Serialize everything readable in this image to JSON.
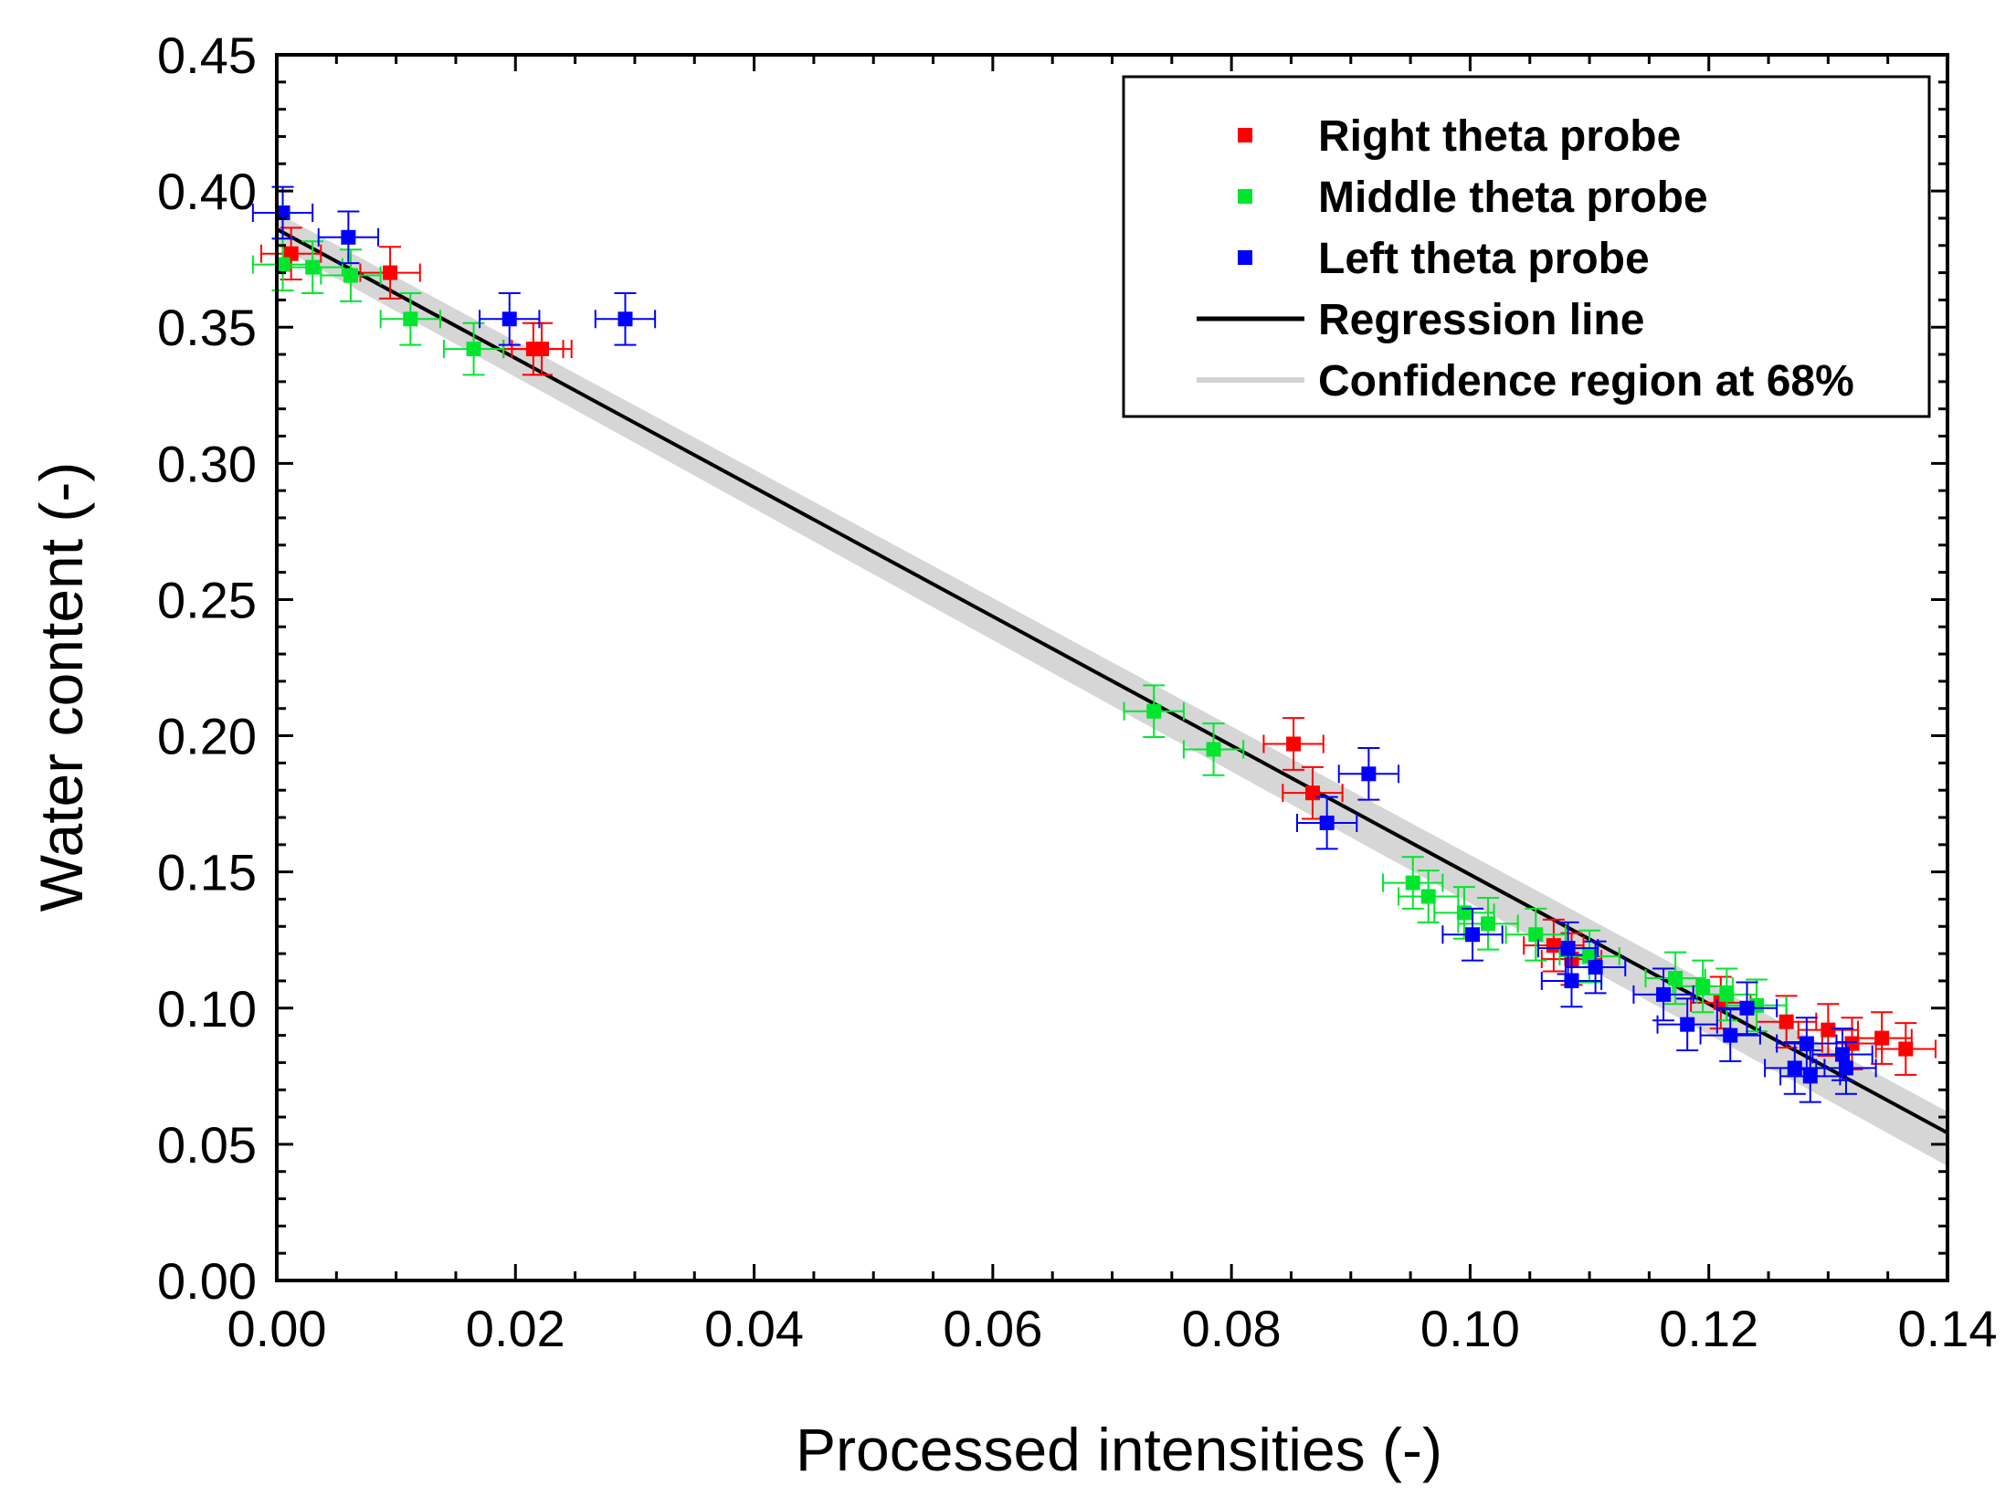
{
  "chart_data": {
    "type": "scatter",
    "title": "",
    "xlabel": "Processed intensities (-)",
    "ylabel": "Water content (-)",
    "xlim": [
      0.0,
      0.14
    ],
    "ylim": [
      0.0,
      0.45
    ],
    "xticks": [
      0.0,
      0.02,
      0.04,
      0.06,
      0.08,
      0.1,
      0.12,
      0.14
    ],
    "xtick_labels": [
      "0.00",
      "0.02",
      "0.04",
      "0.06",
      "0.08",
      "0.10",
      "0.12",
      "0.14"
    ],
    "yticks": [
      0.0,
      0.05,
      0.1,
      0.15,
      0.2,
      0.25,
      0.3,
      0.35,
      0.4,
      0.45
    ],
    "ytick_labels": [
      "0.00",
      "0.05",
      "0.10",
      "0.15",
      "0.20",
      "0.25",
      "0.30",
      "0.35",
      "0.40",
      "0.45"
    ],
    "grid": false,
    "legend_position": "top-right",
    "legend": [
      {
        "label": "Right theta probe",
        "kind": "marker",
        "color": "#ff0000"
      },
      {
        "label": "Middle theta probe",
        "kind": "marker",
        "color": "#00e62e"
      },
      {
        "label": "Left theta probe",
        "kind": "marker",
        "color": "#0000ff"
      },
      {
        "label": "Regression line",
        "kind": "line",
        "color": "#000000"
      },
      {
        "label": "Confidence region at 68%",
        "kind": "band",
        "color": "#d3d3d3"
      }
    ],
    "regression": {
      "intercept": 0.386,
      "slope": -2.37,
      "x_range": [
        0.0,
        0.14
      ]
    },
    "confidence_band": {
      "x": [
        0.0,
        0.14
      ],
      "upper": [
        0.392,
        0.062
      ],
      "lower": [
        0.38,
        0.042
      ]
    },
    "series": [
      {
        "name": "Right theta probe",
        "color": "#ff0000",
        "xerr": 0.0025,
        "yerr": 0.0095,
        "points": [
          [
            0.0012,
            0.377
          ],
          [
            0.0095,
            0.37
          ],
          [
            0.0215,
            0.342
          ],
          [
            0.0222,
            0.342
          ],
          [
            0.0852,
            0.197
          ],
          [
            0.0868,
            0.179
          ],
          [
            0.107,
            0.123
          ],
          [
            0.1085,
            0.118
          ],
          [
            0.121,
            0.102
          ],
          [
            0.1265,
            0.095
          ],
          [
            0.13,
            0.092
          ],
          [
            0.132,
            0.087
          ],
          [
            0.1345,
            0.089
          ],
          [
            0.1365,
            0.085
          ]
        ]
      },
      {
        "name": "Middle theta probe",
        "color": "#00e62e",
        "xerr": 0.0025,
        "yerr": 0.0095,
        "points": [
          [
            0.0005,
            0.373
          ],
          [
            0.003,
            0.372
          ],
          [
            0.0062,
            0.369
          ],
          [
            0.0112,
            0.353
          ],
          [
            0.0165,
            0.342
          ],
          [
            0.0735,
            0.209
          ],
          [
            0.0785,
            0.195
          ],
          [
            0.0952,
            0.146
          ],
          [
            0.0965,
            0.141
          ],
          [
            0.0995,
            0.135
          ],
          [
            0.1015,
            0.131
          ],
          [
            0.1055,
            0.127
          ],
          [
            0.11,
            0.119
          ],
          [
            0.1172,
            0.111
          ],
          [
            0.1195,
            0.108
          ],
          [
            0.1215,
            0.105
          ],
          [
            0.124,
            0.101
          ]
        ]
      },
      {
        "name": "Left theta probe",
        "color": "#0000ff",
        "xerr": 0.0025,
        "yerr": 0.0095,
        "points": [
          [
            0.0005,
            0.392
          ],
          [
            0.006,
            0.383
          ],
          [
            0.0195,
            0.353
          ],
          [
            0.0292,
            0.353
          ],
          [
            0.088,
            0.168
          ],
          [
            0.0915,
            0.186
          ],
          [
            0.1002,
            0.127
          ],
          [
            0.1082,
            0.122
          ],
          [
            0.1085,
            0.11
          ],
          [
            0.1105,
            0.115
          ],
          [
            0.1162,
            0.105
          ],
          [
            0.1182,
            0.094
          ],
          [
            0.1218,
            0.09
          ],
          [
            0.1232,
            0.1
          ],
          [
            0.1282,
            0.087
          ],
          [
            0.1272,
            0.078
          ],
          [
            0.1285,
            0.075
          ],
          [
            0.1312,
            0.083
          ],
          [
            0.1315,
            0.078
          ]
        ]
      }
    ]
  }
}
